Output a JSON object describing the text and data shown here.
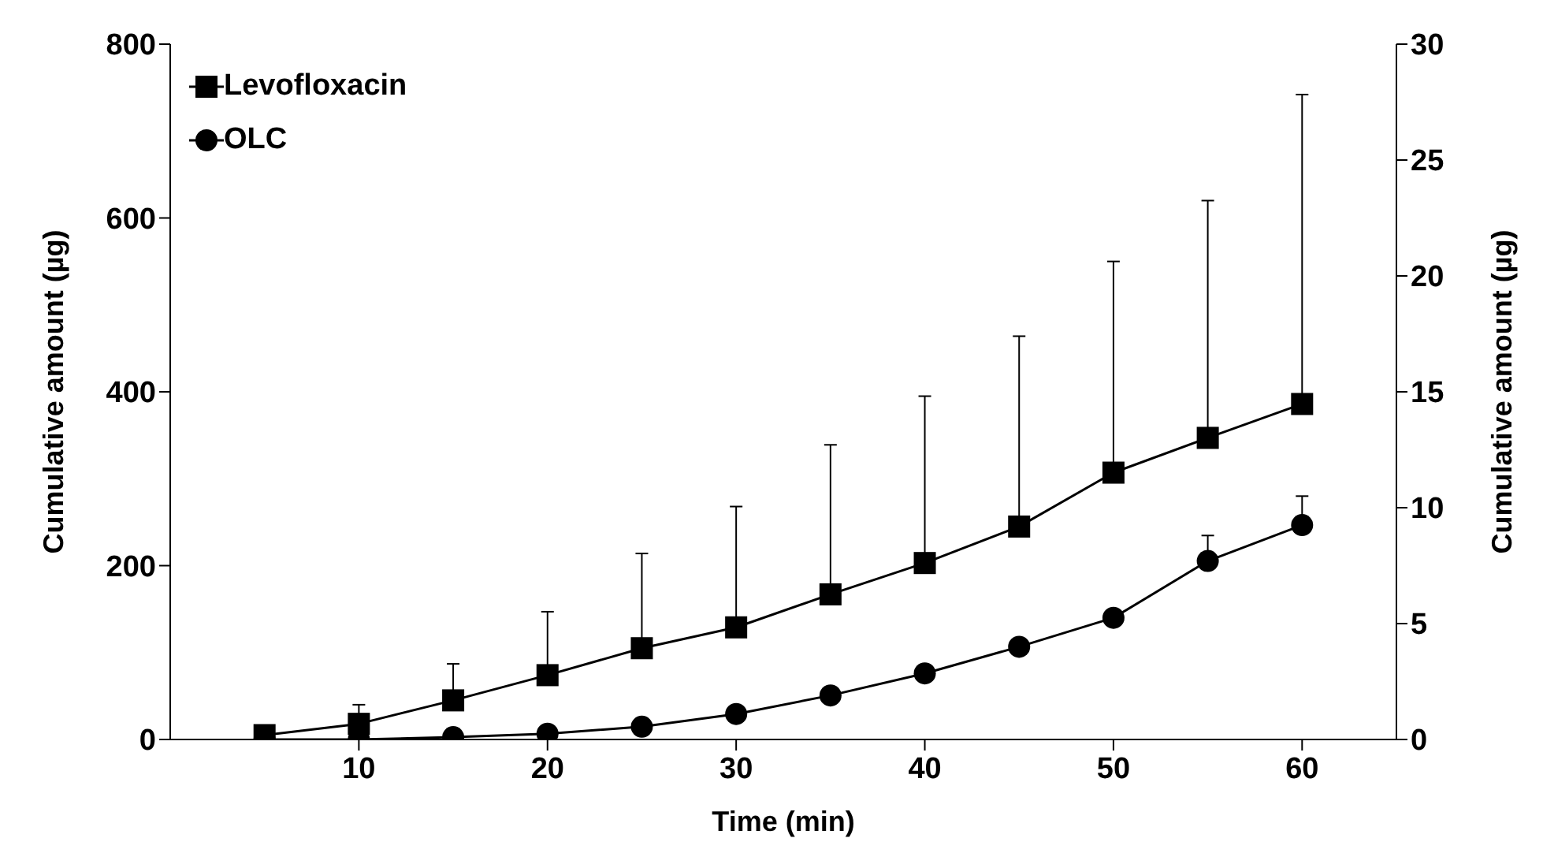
{
  "chart_data": {
    "type": "line",
    "xlabel": "Time (min)",
    "ylabel": "Cumulative amount (µg)",
    "y2label": "Cumulative amount (µg)",
    "x": [
      5,
      10,
      15,
      20,
      25,
      30,
      35,
      40,
      45,
      50,
      55,
      60
    ],
    "series": [
      {
        "name": "Levofloxacin",
        "color": "#000000",
        "marker": "square",
        "values": [
          5,
          18,
          45,
          74,
          105,
          129,
          167,
          203,
          245,
          307,
          347,
          386
        ],
        "errors": [
          null,
          [
            18,
            40
          ],
          [
            45,
            87
          ],
          [
            74,
            147
          ],
          [
            105,
            214
          ],
          [
            129,
            268
          ],
          [
            167,
            339
          ],
          [
            203,
            395
          ],
          [
            245,
            464
          ],
          [
            307,
            550
          ],
          [
            347,
            620
          ],
          [
            386,
            742
          ]
        ]
      },
      {
        "name": "OLC",
        "color": "#000000",
        "marker": "circle",
        "axis": "y2",
        "values": [
          0,
          0,
          0.1,
          0.25,
          0.55,
          1.1,
          1.9,
          2.85,
          4.0,
          5.25,
          7.7,
          9.25
        ],
        "errors": [
          null,
          null,
          null,
          null,
          null,
          null,
          null,
          null,
          null,
          null,
          [
            7.7,
            8.8
          ],
          [
            9.25,
            10.5
          ]
        ]
      }
    ],
    "xlim": [
      0,
      65
    ],
    "xticks": [
      10,
      20,
      30,
      40,
      50,
      60
    ],
    "ylim": [
      0,
      800
    ],
    "yticks": [
      0,
      200,
      400,
      600,
      800
    ],
    "y2lim": [
      0,
      30
    ],
    "y2ticks": [
      0,
      5,
      10,
      15,
      20,
      25,
      30
    ],
    "grid": false,
    "legend": "top left",
    "line_style": "solid"
  }
}
